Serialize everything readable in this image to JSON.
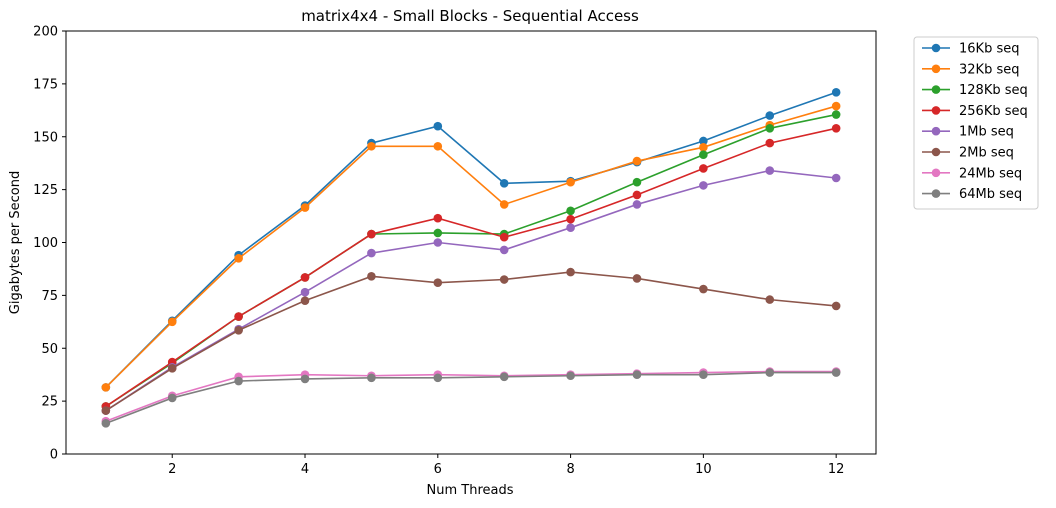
{
  "chart_data": {
    "type": "line",
    "title": "matrix4x4 - Small Blocks - Sequential Access",
    "xlabel": "Num Threads",
    "ylabel": "Gigabytes per Second",
    "xlim": [
      0.4,
      12.6
    ],
    "ylim": [
      0,
      200
    ],
    "xticks": [
      2,
      4,
      6,
      8,
      10,
      12
    ],
    "yticks": [
      0,
      25,
      50,
      75,
      100,
      125,
      150,
      175,
      200
    ],
    "grid": false,
    "legend_position": "outside-top-right",
    "x": [
      1,
      2,
      3,
      4,
      5,
      6,
      7,
      8,
      9,
      10,
      11,
      12
    ],
    "series": [
      {
        "name": "16Kb seq",
        "color": "#1f77b4",
        "values": [
          31.5,
          63,
          94,
          117.5,
          147,
          155,
          128,
          129,
          138,
          148,
          160,
          171
        ]
      },
      {
        "name": "32Kb seq",
        "color": "#ff7f0e",
        "values": [
          31.5,
          62.5,
          92.5,
          116.5,
          145.5,
          145.5,
          118,
          128.5,
          138.5,
          145,
          155.5,
          164.5
        ]
      },
      {
        "name": "128Kb seq",
        "color": "#2ca02c",
        "values": [
          22.5,
          43,
          65,
          83.5,
          104,
          104.5,
          104,
          115,
          128.5,
          141.5,
          154,
          160.5
        ]
      },
      {
        "name": "256Kb seq",
        "color": "#d62728",
        "values": [
          22.5,
          43.5,
          65,
          83.5,
          104,
          111.5,
          102.5,
          111,
          122.5,
          135,
          147,
          154
        ]
      },
      {
        "name": "1Mb seq",
        "color": "#9467bd",
        "values": [
          20.5,
          41,
          59,
          76.5,
          95,
          100,
          96.5,
          107,
          118,
          127,
          134,
          130.5
        ]
      },
      {
        "name": "2Mb seq",
        "color": "#8c564b",
        "values": [
          20.5,
          40.5,
          58.5,
          72.5,
          84,
          81,
          82.5,
          86,
          83,
          78,
          73,
          70
        ]
      },
      {
        "name": "24Mb seq",
        "color": "#e377c2",
        "values": [
          15.5,
          27.5,
          36.5,
          37.5,
          37,
          37.5,
          37,
          37.5,
          38,
          38.5,
          39,
          39
        ]
      },
      {
        "name": "64Mb seq",
        "color": "#7f7f7f",
        "values": [
          14.5,
          26.5,
          34.5,
          35.5,
          36,
          36,
          36.5,
          37,
          37.5,
          37.5,
          38.5,
          38.5
        ]
      }
    ]
  }
}
